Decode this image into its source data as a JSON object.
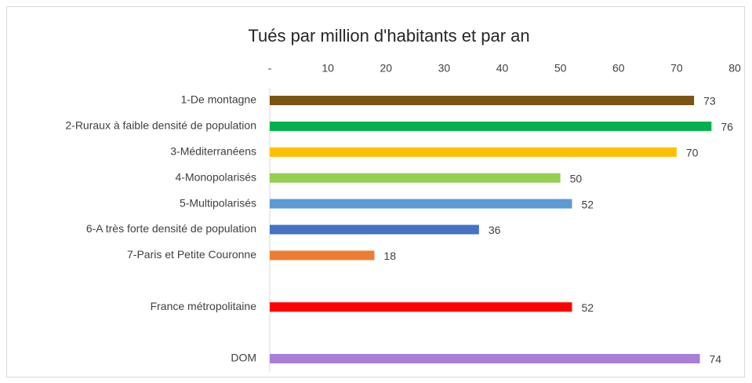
{
  "chart_data": {
    "type": "hbar",
    "title": "Tués par million d'habitants et par an",
    "categories": [
      "1-De montagne",
      "2-Ruraux à faible densité de population",
      "3-Méditerranéens",
      "4-Monopolarisés",
      "5-Multipolarisés",
      "6-A très forte densité de population",
      "7-Paris et Petite Couronne",
      null,
      "France métropolitaine",
      null,
      "DOM"
    ],
    "values": [
      73,
      76,
      70,
      50,
      52,
      36,
      18,
      null,
      52,
      null,
      74
    ],
    "colors": [
      "#7b5313",
      "#00b050",
      "#ffc000",
      "#92d050",
      "#5b9bd5",
      "#4472c4",
      "#ed7d31",
      null,
      "#ff0000",
      null,
      "#a97ed8"
    ],
    "xlim": [
      0,
      80
    ],
    "xticks": [
      {
        "value": 0,
        "label": "-"
      },
      10,
      20,
      30,
      40,
      50,
      60,
      70,
      80
    ],
    "grid": false
  }
}
